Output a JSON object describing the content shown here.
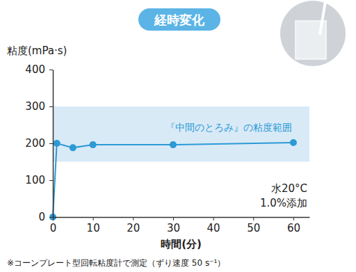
{
  "chart_data": {
    "type": "line",
    "title": "経時変化",
    "y_label": "粘度(mPa·s)",
    "x_label": "時間(分)",
    "x": [
      0,
      1,
      5,
      10,
      30,
      60
    ],
    "values": [
      0,
      200,
      188,
      196,
      196,
      202
    ],
    "color": "#2b9ad6",
    "marker": "circle",
    "line_style": "solid",
    "grid": false,
    "xlim": [
      0,
      64
    ],
    "xticks": [
      0,
      10,
      20,
      30,
      40,
      50,
      60
    ],
    "ylim": [
      0,
      400
    ],
    "yticks": [
      0,
      100,
      200,
      300,
      400
    ],
    "band": {
      "from": 150,
      "to": 300,
      "label": "『中間のとろみ』の粘度範囲",
      "color": "#d9eaf7"
    },
    "annotations": [
      "水20°C",
      "1.0%添加"
    ],
    "footnote": "※コーンプレート型回転粘度計で測定（ずり速度 50 s⁻¹）"
  }
}
